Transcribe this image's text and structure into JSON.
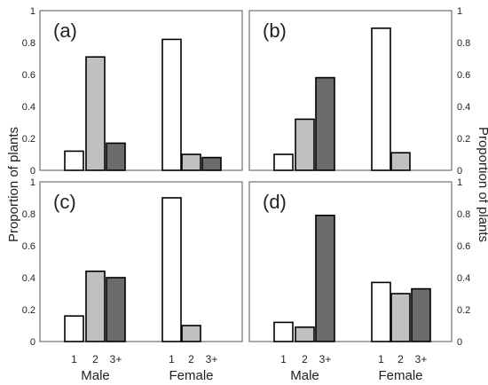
{
  "chart_data": {
    "type": "bar",
    "ylabel": "Proportion of plants",
    "ylim": [
      0,
      1
    ],
    "yticks": [
      "0",
      "0.2",
      "0.4",
      "0.6",
      "0.8",
      "1"
    ],
    "groups": [
      "Male",
      "Female"
    ],
    "categories": [
      "1",
      "2",
      "3+"
    ],
    "colors": [
      "#ffffff",
      "#c0c0c0",
      "#6b6b6b"
    ],
    "panels": [
      {
        "label": "(a)",
        "male": [
          0.12,
          0.71,
          0.17
        ],
        "female": [
          0.82,
          0.1,
          0.08
        ]
      },
      {
        "label": "(b)",
        "male": [
          0.1,
          0.32,
          0.58
        ],
        "female": [
          0.89,
          0.11,
          0.0
        ]
      },
      {
        "label": "(c)",
        "male": [
          0.16,
          0.44,
          0.4
        ],
        "female": [
          0.9,
          0.1,
          0.0
        ]
      },
      {
        "label": "(d)",
        "male": [
          0.12,
          0.09,
          0.79
        ],
        "female": [
          0.37,
          0.3,
          0.33
        ]
      }
    ]
  }
}
